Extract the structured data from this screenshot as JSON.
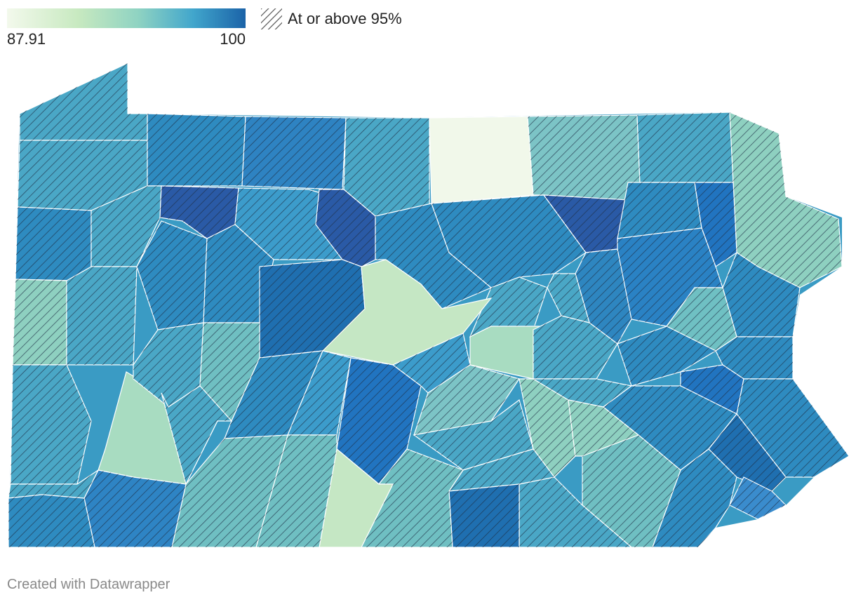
{
  "legend": {
    "min_label": "87.91",
    "max_label": "100",
    "hatch_label": "At or above 95%",
    "scale_colors": [
      "#f3f9ec",
      "#c7e9c0",
      "#8fd3c2",
      "#41a6cc",
      "#1b63a8"
    ]
  },
  "map": {
    "region": "Pennsylvania counties",
    "hatch_threshold": 95,
    "colors": {
      "low": "#f1f8ea",
      "light_green": "#c5e7c4",
      "mint": "#a8dcc1",
      "teal": "#5bb3c7",
      "blue": "#2e8bc0",
      "dark_blue": "#1f6fb0",
      "navy": "#2a5aa6"
    }
  },
  "footer": {
    "credit": "Created with Datawrapper"
  }
}
